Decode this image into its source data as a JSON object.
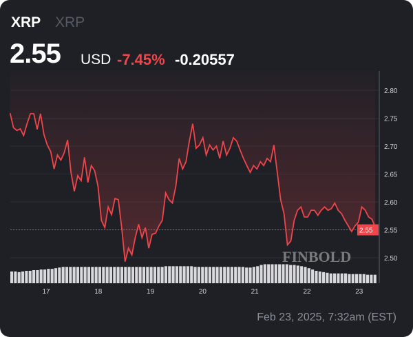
{
  "header": {
    "symbol": "XRP",
    "name": "XRP",
    "price": "2.55",
    "currency": "USD",
    "change_pct": "-7.45%",
    "change_abs": "-0.20557"
  },
  "footer": {
    "timestamp": "Feb 23, 2025, 7:32am (EST)"
  },
  "watermark": "FINBOLD",
  "colors": {
    "line": "#f0454a",
    "background": "#1e2026",
    "volume": "#d9d9de",
    "last_price_label": "#f0454a"
  },
  "chart_data": {
    "type": "line",
    "title": "",
    "xlabel": "",
    "ylabel": "",
    "x_range": [
      16.31,
      23.31
    ],
    "ylim": [
      2.46,
      2.84
    ],
    "y_ticks": [
      "2.50",
      "2.55",
      "2.60",
      "2.65",
      "2.70",
      "2.75",
      "2.80"
    ],
    "x_ticks": [
      "17",
      "18",
      "19",
      "20",
      "21",
      "22",
      "23"
    ],
    "last_price_label": "2.55",
    "grid": true,
    "series": [
      {
        "values": [
          2.759,
          2.733,
          2.728,
          2.731,
          2.719,
          2.74,
          2.758,
          2.758,
          2.73,
          2.758,
          2.721,
          2.702,
          2.69,
          2.659,
          2.684,
          2.675,
          2.688,
          2.711,
          2.653,
          2.619,
          2.647,
          2.638,
          2.68,
          2.635,
          2.665,
          2.656,
          2.628,
          2.567,
          2.554,
          2.591,
          2.577,
          2.606,
          2.604,
          2.554,
          2.493,
          2.517,
          2.505,
          2.536,
          2.56,
          2.536,
          2.554,
          2.517,
          2.542,
          2.544,
          2.557,
          2.567,
          2.616,
          2.604,
          2.598,
          2.628,
          2.678,
          2.659,
          2.672,
          2.709,
          2.74,
          2.696,
          2.702,
          2.715,
          2.684,
          2.702,
          2.693,
          2.7,
          2.678,
          2.709,
          2.684,
          2.696,
          2.715,
          2.709,
          2.693,
          2.678,
          2.665,
          2.653,
          2.665,
          2.659,
          2.672,
          2.665,
          2.678,
          2.672,
          2.702,
          2.653,
          2.604,
          2.579,
          2.523,
          2.53,
          2.567,
          2.585,
          2.591,
          2.573,
          2.573,
          2.585,
          2.585,
          2.576,
          2.585,
          2.591,
          2.585,
          2.588,
          2.598,
          2.585,
          2.579,
          2.567,
          2.557,
          2.547,
          2.557,
          2.564,
          2.591,
          2.585,
          2.573,
          2.569,
          2.554
        ]
      }
    ],
    "volume": [
      18,
      18,
      17,
      18,
      19,
      19,
      20,
      20,
      21,
      21,
      22,
      22,
      23,
      24,
      25,
      25,
      25,
      25,
      25,
      25,
      25,
      25,
      25,
      25,
      25,
      25,
      25,
      25,
      25,
      25,
      25,
      25,
      25,
      25,
      25,
      25,
      25,
      25,
      25,
      25,
      25,
      25,
      26,
      26,
      26,
      26,
      26,
      26,
      26,
      26,
      25,
      25,
      25,
      25,
      25,
      25,
      25,
      25,
      25,
      25,
      25,
      25,
      25,
      25,
      24,
      24,
      25,
      26,
      28,
      29,
      29,
      29,
      29,
      29,
      29,
      29,
      28,
      28,
      27,
      26,
      25,
      23,
      21,
      19,
      18,
      17,
      16,
      15,
      15,
      15,
      15,
      15,
      14,
      14,
      14,
      14,
      14,
      13,
      13,
      13
    ]
  }
}
